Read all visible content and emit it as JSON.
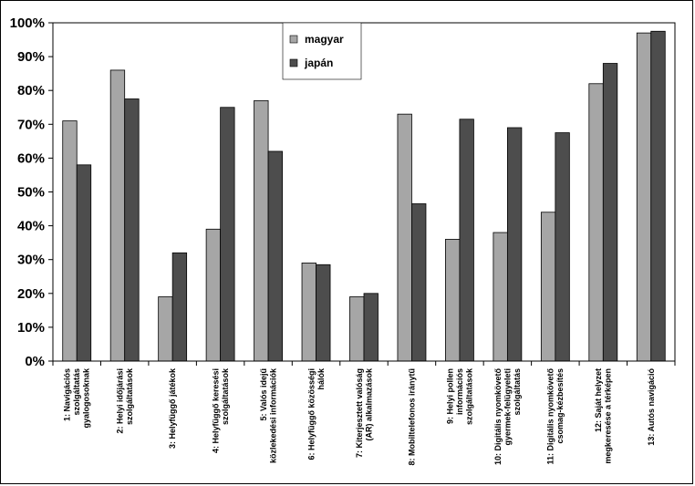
{
  "chart_data": {
    "type": "bar",
    "ylim": [
      0,
      100
    ],
    "y_ticks": [
      "0%",
      "10%",
      "20%",
      "30%",
      "40%",
      "50%",
      "60%",
      "70%",
      "80%",
      "90%",
      "100%"
    ],
    "legend_position": "top-center",
    "categories": [
      [
        "1: Navigációs",
        "szolgáltatás",
        "gyalogosoknak"
      ],
      [
        "2: Helyi időjárási",
        "szolgáltatások"
      ],
      [
        "3: Helyfüggő játékok"
      ],
      [
        "4: Helyfüggő keresési",
        "szolgáltatások"
      ],
      [
        "5: Valós idejű",
        "közlekedési információk"
      ],
      [
        "6: Helyfüggő közösségi",
        "hálók"
      ],
      [
        "7: Kiterjesztett valóság",
        "(AR) alkalmazások"
      ],
      [
        "8: Mobiltelefonos iránytű"
      ],
      [
        "9: Helyi pollen",
        "információs",
        "szolgáltatások"
      ],
      [
        "10: Digitális nyomkövető",
        "gyermek-felügyeleti",
        "szolgáltatás"
      ],
      [
        "11: Digitális nyomkövető",
        "csomag-kézbesítés"
      ],
      [
        "12: Saját helyzet",
        "megkeresése a térképen"
      ],
      [
        "13: Autós navigáció"
      ]
    ],
    "series": [
      {
        "name": "magyar",
        "color": "#a6a6a6",
        "values": [
          71,
          86,
          19,
          39,
          77,
          29,
          19,
          73,
          36,
          38,
          44,
          82,
          97
        ]
      },
      {
        "name": "japán",
        "color": "#4d4d4d",
        "values": [
          58,
          77.5,
          32,
          75,
          62,
          28.5,
          20,
          46.5,
          71.5,
          69,
          67.5,
          88,
          97.5
        ]
      }
    ]
  }
}
